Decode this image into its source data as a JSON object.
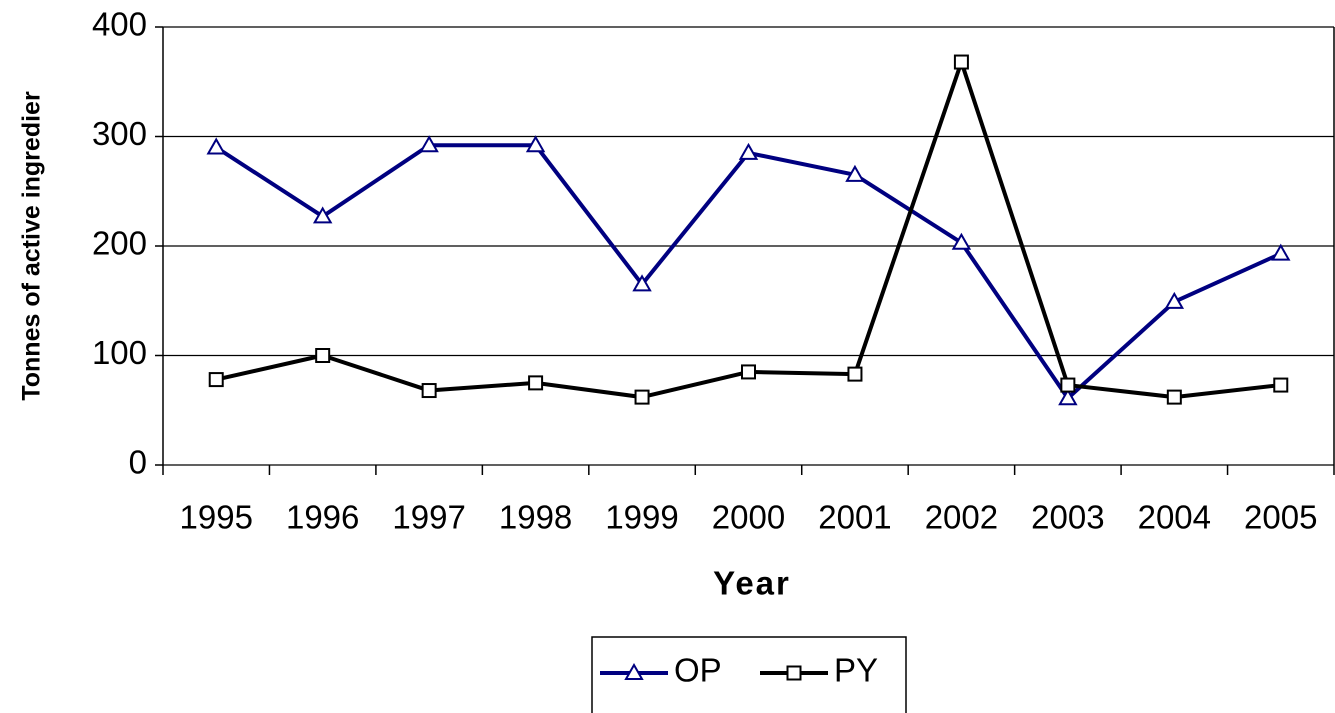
{
  "chart_data": {
    "type": "line",
    "x_label": "Year",
    "y_label": "Tonnes of active ingredier",
    "categories": [
      "1995",
      "1996",
      "1997",
      "1998",
      "1999",
      "2000",
      "2001",
      "2002",
      "2003",
      "2004",
      "2005"
    ],
    "series": [
      {
        "name": "OP",
        "color": "#000080",
        "marker": "triangle",
        "values": [
          290,
          227,
          292,
          292,
          165,
          285,
          265,
          203,
          61,
          149,
          193
        ]
      },
      {
        "name": "PY",
        "color": "#000000",
        "marker": "square",
        "values": [
          78,
          100,
          68,
          75,
          62,
          85,
          83,
          368,
          73,
          62,
          73
        ]
      }
    ],
    "ylim": [
      0,
      400
    ],
    "yticks": [
      0,
      100,
      200,
      300,
      400
    ],
    "grid": true,
    "legend": "bottom"
  }
}
